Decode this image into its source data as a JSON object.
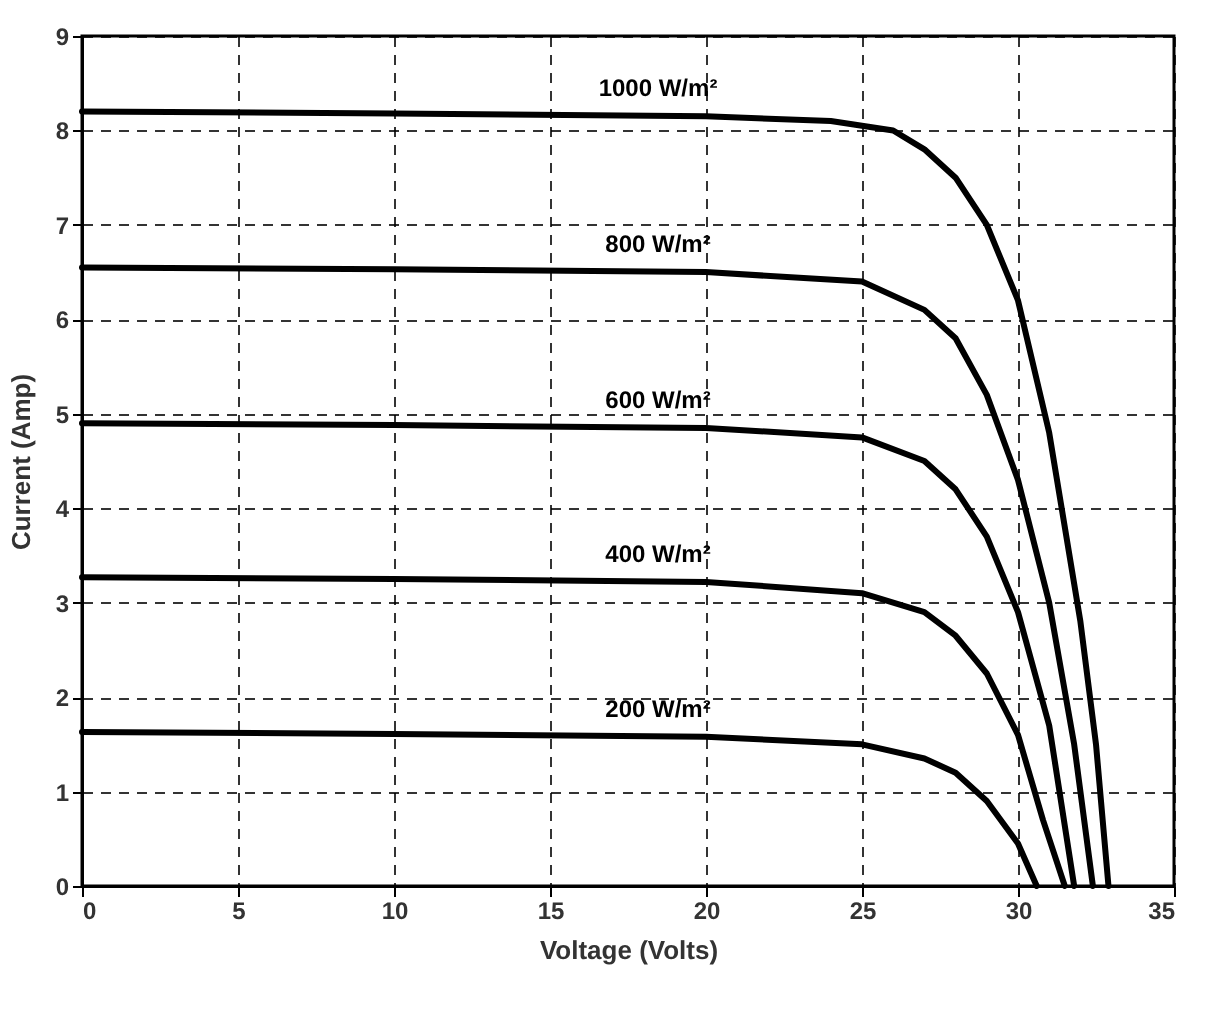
{
  "chart_data": {
    "type": "line",
    "xlabel": "Voltage (Volts)",
    "ylabel": "Current (Amp)",
    "xlim": [
      0,
      35
    ],
    "ylim": [
      0,
      9
    ],
    "xticks": [
      0,
      5,
      10,
      15,
      20,
      25,
      30,
      35
    ],
    "yticks": [
      0,
      1,
      2,
      3,
      4,
      5,
      6,
      7,
      8,
      9
    ],
    "grid": true,
    "line_style": "solid",
    "marker": "none",
    "legend": false,
    "series": [
      {
        "name": "1000 W/m²",
        "color": "#000000",
        "x": [
          0,
          10,
          20,
          24,
          26,
          27,
          28,
          29,
          30,
          31,
          32,
          32.5,
          32.9
        ],
        "values": [
          8.2,
          8.18,
          8.15,
          8.1,
          8.0,
          7.8,
          7.5,
          7.0,
          6.2,
          4.8,
          2.8,
          1.5,
          0
        ]
      },
      {
        "name": "800 W/m²",
        "color": "#000000",
        "x": [
          0,
          10,
          20,
          25,
          27,
          28,
          29,
          30,
          31,
          31.8,
          32.4
        ],
        "values": [
          6.55,
          6.53,
          6.5,
          6.4,
          6.1,
          5.8,
          5.2,
          4.3,
          3.0,
          1.5,
          0
        ]
      },
      {
        "name": "600 W/m²",
        "color": "#000000",
        "x": [
          0,
          10,
          20,
          25,
          27,
          28,
          29,
          30,
          31,
          31.8
        ],
        "values": [
          4.9,
          4.88,
          4.85,
          4.75,
          4.5,
          4.2,
          3.7,
          2.9,
          1.7,
          0
        ]
      },
      {
        "name": "400 W/m²",
        "color": "#000000",
        "x": [
          0,
          10,
          20,
          25,
          27,
          28,
          29,
          30,
          30.8,
          31.5
        ],
        "values": [
          3.27,
          3.25,
          3.22,
          3.1,
          2.9,
          2.65,
          2.25,
          1.6,
          0.7,
          0
        ]
      },
      {
        "name": "200 W/m²",
        "color": "#000000",
        "x": [
          0,
          10,
          20,
          25,
          27,
          28,
          29,
          30,
          30.6
        ],
        "values": [
          1.63,
          1.61,
          1.58,
          1.5,
          1.35,
          1.2,
          0.9,
          0.45,
          0
        ]
      }
    ]
  }
}
